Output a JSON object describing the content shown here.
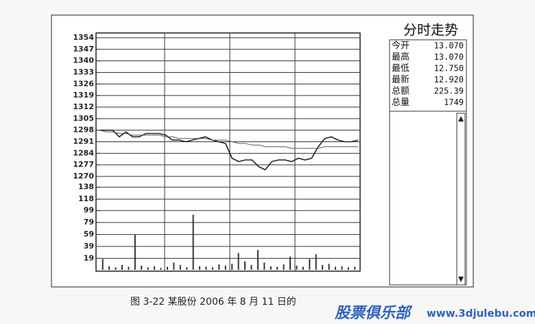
{
  "chart_data": [
    {
      "type": "line",
      "categories": [
        null,
        null,
        null,
        null,
        null,
        null,
        null,
        null,
        null,
        null,
        null,
        null,
        null,
        null,
        null,
        null,
        null,
        null,
        null,
        null,
        null,
        null,
        null,
        null,
        null,
        null,
        null,
        null,
        null,
        null,
        null,
        null,
        null,
        null,
        null,
        null,
        null,
        null,
        null,
        null
      ],
      "series": [
        {
          "color": "#222222",
          "values": [
            1298,
            1298,
            1298,
            1294,
            1297,
            1294,
            1294,
            1296,
            1296,
            1296,
            1295,
            1292,
            1292,
            1291,
            1292,
            1293,
            1294,
            1292,
            1291,
            1290,
            1281,
            1279,
            1280,
            1280,
            1276,
            1274,
            1279,
            1280,
            1280,
            1279,
            1281,
            1280,
            1281,
            1288,
            1293,
            1294,
            1292,
            1291,
            1291,
            1292
          ]
        },
        {
          "color": "#555555",
          "values": [
            1298,
            1297,
            1297,
            1296,
            1296,
            1295,
            1295,
            1295,
            1295,
            1295,
            1294,
            1294,
            1293,
            1293,
            1293,
            1293,
            1293,
            1292,
            1292,
            1292,
            1291,
            1290,
            1290,
            1289,
            1289,
            1288,
            1288,
            1288,
            1288,
            1287,
            1287,
            1287,
            1287,
            1287,
            1288,
            1288,
            1288,
            1288,
            1288,
            1288
          ]
        }
      ],
      "ylim": [
        1270,
        1354
      ],
      "yticks": [
        1354,
        1347,
        1340,
        1333,
        1326,
        1319,
        1312,
        1305,
        1298,
        1291,
        1284,
        1277,
        1270
      ],
      "grid": true
    },
    {
      "type": "bar",
      "categories": [
        null,
        null,
        null,
        null,
        null,
        null,
        null,
        null,
        null,
        null,
        null,
        null,
        null,
        null,
        null,
        null,
        null,
        null,
        null,
        null,
        null,
        null,
        null,
        null,
        null,
        null,
        null,
        null,
        null,
        null,
        null,
        null,
        null,
        null,
        null,
        null,
        null,
        null,
        null,
        null
      ],
      "values": [
        18,
        6,
        4,
        8,
        5,
        59,
        7,
        4,
        6,
        3,
        5,
        12,
        8,
        4,
        92,
        6,
        5,
        4,
        9,
        7,
        10,
        28,
        14,
        8,
        33,
        12,
        6,
        5,
        9,
        22,
        7,
        5,
        18,
        26,
        8,
        10,
        5,
        6,
        4,
        5
      ],
      "color": "#333333",
      "ylim": [
        0,
        156
      ],
      "yticks": [
        19,
        39,
        59,
        79,
        99,
        118,
        138
      ],
      "grid": true
    }
  ],
  "panel": {
    "title": "分时走势",
    "rows": [
      [
        "今开",
        "13.070"
      ],
      [
        "最高",
        "13.070"
      ],
      [
        "最低",
        "12.750"
      ],
      [
        "最新",
        "12.920"
      ],
      [
        "总额",
        "225.39"
      ],
      [
        "总量",
        "1749"
      ]
    ]
  },
  "caption": "图 3-22  某股份 2006 年 8 月 11 日的",
  "watermark": {
    "brand": "股票俱乐部",
    "url": "www.3djulebu.com"
  }
}
